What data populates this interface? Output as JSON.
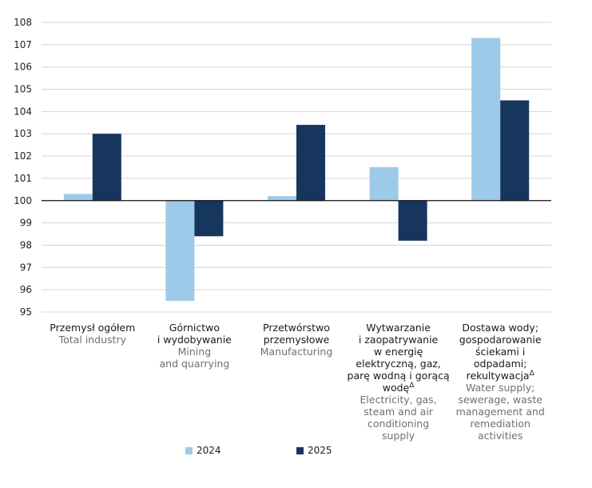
{
  "chart_data": {
    "type": "bar",
    "categories": [
      {
        "label_pl": [
          "Przemysł ogółem"
        ],
        "label_en": [
          "Total industry"
        ]
      },
      {
        "label_pl": [
          "Górnictwo",
          "i wydobywanie"
        ],
        "label_en": [
          "Mining",
          "and quarrying"
        ]
      },
      {
        "label_pl": [
          "Przetwórstwo",
          "przemysłowe"
        ],
        "label_en": [
          "Manufacturing"
        ]
      },
      {
        "label_pl": [
          "Wytwarzanie",
          "i zaopatrywanie",
          "w energię",
          "elektryczną, gaz,",
          "parę wodną i gorącą",
          "wodę"
        ],
        "label_en": [
          "Electricity, gas,",
          "steam and air",
          "conditioning",
          "supply"
        ],
        "footnote": "Δ"
      },
      {
        "label_pl": [
          "Dostawa wody;",
          "gospodarowanie",
          "ściekami i",
          "odpadami;",
          "rekultywacja"
        ],
        "label_en": [
          "Water supply;",
          "sewerage, waste",
          "management and",
          "remediation",
          "activities"
        ],
        "footnote": "Δ"
      }
    ],
    "series": [
      {
        "name": "2024",
        "color": "#9ecae9",
        "values": [
          100.3,
          95.5,
          100.2,
          101.5,
          107.3
        ]
      },
      {
        "name": "2025",
        "color": "#17365d",
        "values": [
          103.0,
          98.4,
          103.4,
          98.2,
          104.5
        ]
      }
    ],
    "baseline": 100,
    "ylim": [
      95,
      108
    ],
    "yticks": [
      "95",
      "96",
      "97",
      "98",
      "99",
      "100",
      "101",
      "102",
      "103",
      "104",
      "105",
      "106",
      "107",
      "108"
    ],
    "grid": true,
    "legend_position": "bottom"
  }
}
